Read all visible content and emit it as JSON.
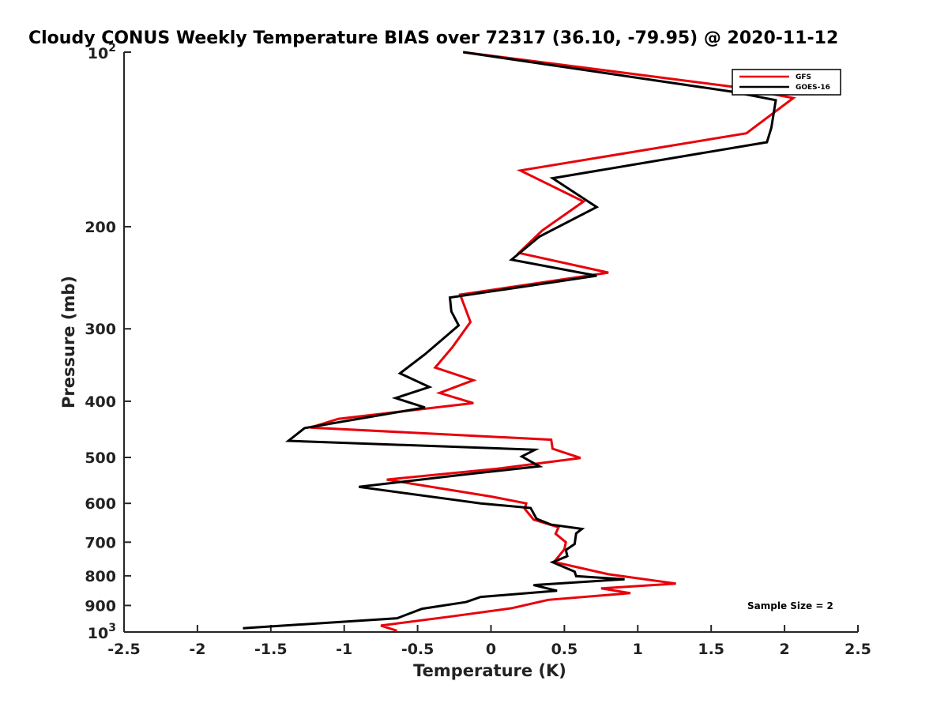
{
  "chart_data": {
    "type": "line",
    "title": "Cloudy CONUS Weekly Temperature BIAS over 72317 (36.10, -79.95) @ 2020-11-12",
    "xlabel": "Temperature (K)",
    "ylabel": "Pressure (mb)",
    "xlim": [
      -2.5,
      2.5
    ],
    "ylim": [
      100,
      1000
    ],
    "yscale": "log",
    "y_reversed": true,
    "grid": false,
    "legend_position": "top-right",
    "x_ticks": [
      "-2.5",
      "-2",
      "-1.5",
      "-1",
      "-0.5",
      "0",
      "0.5",
      "1",
      "1.5",
      "2",
      "2.5"
    ],
    "y_ticks": [
      {
        "value": 100,
        "base": "10",
        "exp": "2"
      },
      {
        "value": 200,
        "label": "200"
      },
      {
        "value": 300,
        "label": "300"
      },
      {
        "value": 400,
        "label": "400"
      },
      {
        "value": 500,
        "label": "500"
      },
      {
        "value": 600,
        "label": "600"
      },
      {
        "value": 700,
        "label": "700"
      },
      {
        "value": 800,
        "label": "800"
      },
      {
        "value": 900,
        "label": "900"
      },
      {
        "value": 1000,
        "base": "10",
        "exp": "3"
      }
    ],
    "annotation": "Sample Size = 2",
    "series": [
      {
        "name": "GFS",
        "color": "#e8000b",
        "points": [
          [
            -0.19,
            100
          ],
          [
            1.68,
            115
          ],
          [
            2.06,
            120
          ],
          [
            1.74,
            138
          ],
          [
            0.2,
            160
          ],
          [
            0.63,
            181
          ],
          [
            0.35,
            203
          ],
          [
            0.19,
            222
          ],
          [
            0.8,
            240
          ],
          [
            -0.21,
            262
          ],
          [
            -0.14,
            292
          ],
          [
            -0.26,
            322
          ],
          [
            -0.38,
            350
          ],
          [
            -0.12,
            368
          ],
          [
            -0.35,
            387
          ],
          [
            -0.12,
            403
          ],
          [
            -1.04,
            429
          ],
          [
            -1.23,
            444
          ],
          [
            0.41,
            466
          ],
          [
            0.42,
            483
          ],
          [
            0.61,
            501
          ],
          [
            0.04,
            523
          ],
          [
            -0.71,
            546
          ],
          [
            0.0,
            584
          ],
          [
            0.24,
            600
          ],
          [
            0.23,
            613
          ],
          [
            0.29,
            640
          ],
          [
            0.46,
            660
          ],
          [
            0.44,
            677
          ],
          [
            0.51,
            700
          ],
          [
            0.5,
            720
          ],
          [
            0.43,
            757
          ],
          [
            0.8,
            795
          ],
          [
            1.26,
            825
          ],
          [
            0.75,
            841
          ],
          [
            0.95,
            857
          ],
          [
            0.39,
            880
          ],
          [
            0.14,
            910
          ],
          [
            -0.27,
            940
          ],
          [
            -0.75,
            975
          ],
          [
            -0.64,
            995
          ]
        ]
      },
      {
        "name": "GOES-16",
        "color": "#000000",
        "points": [
          [
            -0.19,
            100
          ],
          [
            1.64,
            117
          ],
          [
            1.94,
            121
          ],
          [
            1.91,
            135
          ],
          [
            1.88,
            143
          ],
          [
            0.42,
            165
          ],
          [
            0.72,
            185
          ],
          [
            0.33,
            208
          ],
          [
            0.14,
            228
          ],
          [
            0.72,
            243
          ],
          [
            -0.28,
            265
          ],
          [
            -0.27,
            280
          ],
          [
            -0.22,
            296
          ],
          [
            -0.45,
            332
          ],
          [
            -0.62,
            358
          ],
          [
            -0.42,
            378
          ],
          [
            -0.65,
            395
          ],
          [
            -0.45,
            410
          ],
          [
            -1.27,
            445
          ],
          [
            -1.38,
            468
          ],
          [
            0.3,
            485
          ],
          [
            0.21,
            498
          ],
          [
            0.33,
            518
          ],
          [
            -0.18,
            535
          ],
          [
            -0.9,
            562
          ],
          [
            -0.07,
            600
          ],
          [
            0.27,
            611
          ],
          [
            0.31,
            638
          ],
          [
            0.41,
            653
          ],
          [
            0.62,
            664
          ],
          [
            0.58,
            676
          ],
          [
            0.57,
            705
          ],
          [
            0.51,
            722
          ],
          [
            0.52,
            740
          ],
          [
            0.42,
            758
          ],
          [
            0.57,
            787
          ],
          [
            0.58,
            801
          ],
          [
            0.91,
            811
          ],
          [
            0.29,
            830
          ],
          [
            0.45,
            849
          ],
          [
            -0.07,
            870
          ],
          [
            -0.17,
            888
          ],
          [
            -0.47,
            912
          ],
          [
            -0.64,
            947
          ],
          [
            -1.69,
            985
          ]
        ]
      }
    ]
  }
}
